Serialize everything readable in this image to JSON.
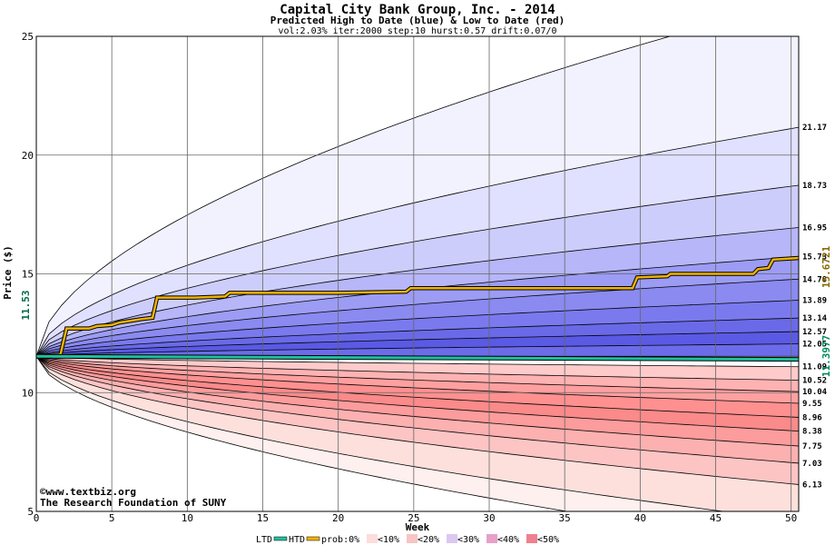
{
  "chart_data": {
    "type": "area",
    "title": "Capital City Bank Group, Inc. - 2014",
    "subtitle": "Predicted High to Date (blue) &  Low to Date (red)",
    "params": "vol:2.03% iter:2000 step:10 hurst:0.57 drift:0.07/0",
    "xlabel": "Week",
    "ylabel": "Price ($)",
    "xlim": [
      0,
      50.5
    ],
    "ylim": [
      5,
      25
    ],
    "x_ticks": [
      0,
      5,
      10,
      15,
      20,
      25,
      30,
      35,
      40,
      45,
      50
    ],
    "y_ticks": [
      5,
      10,
      15,
      20,
      25
    ],
    "start_price": 11.53,
    "start_label": "11.53",
    "htd_end_label": "15.6721",
    "ltd_end_label": "11.3977",
    "high_bands": [
      {
        "p": "0%",
        "end": 26.5
      },
      {
        "p": "10%",
        "end": 21.17
      },
      {
        "p": "20%",
        "end": 18.73
      },
      {
        "p": "30%",
        "end": 16.95
      },
      {
        "p": "40%",
        "end": 15.73
      },
      {
        "p": "50%",
        "end": 14.78
      },
      {
        "p": "60%",
        "end": 13.89
      },
      {
        "p": "70%",
        "end": 13.14
      },
      {
        "p": "80%",
        "end": 12.57
      },
      {
        "p": "90%",
        "end": 12.05
      },
      {
        "p": "100%",
        "end": 11.53
      }
    ],
    "low_bands": [
      {
        "p": "100%",
        "end": 11.09
      },
      {
        "p": "90%",
        "end": 10.52
      },
      {
        "p": "80%",
        "end": 10.04
      },
      {
        "p": "70%",
        "end": 9.55
      },
      {
        "p": "60%",
        "end": 8.96
      },
      {
        "p": "50%",
        "end": 8.38
      },
      {
        "p": "40%",
        "end": 7.75
      },
      {
        "p": "30%",
        "end": 7.03
      },
      {
        "p": "20%",
        "end": 6.13
      },
      {
        "p": "10%",
        "end": 4.6
      },
      {
        "p": "0%",
        "end": 3.5
      }
    ],
    "right_labels": [
      "21.17",
      "18.73",
      "16.95",
      "15.73",
      "14.78",
      "13.89",
      "13.14",
      "12.57",
      "12.05",
      "11.09",
      "10.52",
      "10.04",
      "9.55",
      "8.96",
      "8.38",
      "7.75",
      "7.03",
      "6.13"
    ],
    "htd_series": {
      "x": [
        0,
        1.6,
        2.0,
        3.5,
        4.0,
        5.0,
        5.5,
        6.5,
        7.0,
        7.7,
        8.0,
        10.5,
        12.5,
        12.8,
        20.0,
        24.5,
        24.8,
        39.5,
        39.8,
        41.8,
        42.0,
        47.5,
        47.8,
        48.5,
        48.8,
        50.5
      ],
      "y": [
        11.53,
        11.6,
        12.7,
        12.7,
        12.8,
        12.85,
        12.95,
        13.05,
        13.1,
        13.15,
        14.0,
        14.0,
        14.05,
        14.2,
        14.2,
        14.25,
        14.4,
        14.4,
        14.85,
        14.9,
        15.0,
        15.0,
        15.2,
        15.25,
        15.6,
        15.67
      ]
    },
    "ltd_series": {
      "x": [
        0,
        50.5
      ],
      "y": [
        11.53,
        11.4
      ]
    },
    "legend": {
      "ltd": "LTD",
      "htd": "HTD",
      "prob": "prob:0%",
      "items": [
        "<10%",
        "<20%",
        "<30%",
        "<40%",
        "<50%"
      ],
      "colors": [
        "#ffffff",
        "#fcdcdc",
        "#f8c4c4",
        "#dcc8f0",
        "#e8a0c8",
        "#ee8090"
      ]
    },
    "credit_1": "©www.textbiz.org",
    "credit_2": "The Research Foundation of SUNY",
    "colors": {
      "htd": "#f0b400",
      "ltd": "#20c0a0",
      "grid": "#666666",
      "high_label": "#8b6a00",
      "low_label": "#008b5a"
    }
  }
}
